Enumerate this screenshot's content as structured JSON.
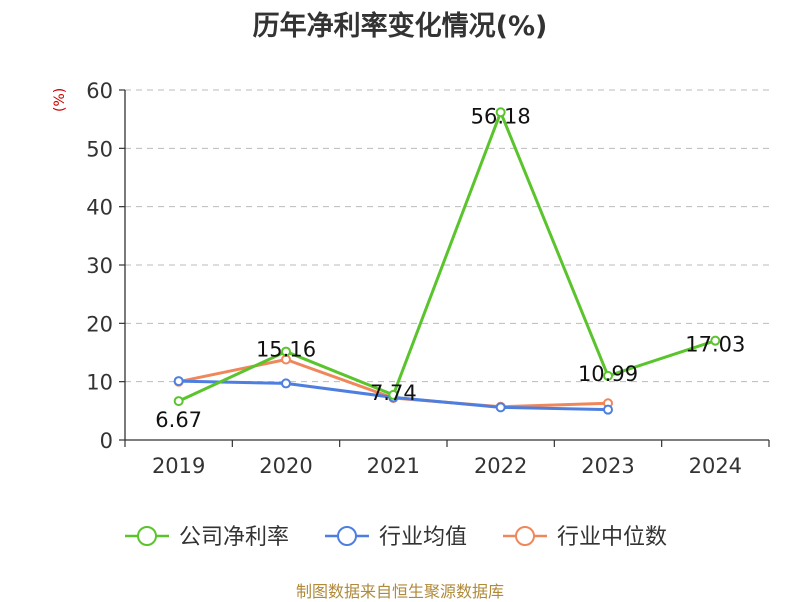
{
  "chart_data": {
    "type": "line",
    "title": "历年净利率变化情况(%)",
    "ylabel": "(%)",
    "xlabel": "",
    "categories": [
      "2019",
      "2020",
      "2021",
      "2022",
      "2023",
      "2024"
    ],
    "ylim": [
      0,
      60
    ],
    "yticks": [
      0,
      10,
      20,
      30,
      40,
      50,
      60
    ],
    "grid": true,
    "legend_position": "bottom",
    "series": [
      {
        "name": "公司净利率",
        "color": "#5ac42c",
        "values": [
          6.67,
          15.16,
          7.74,
          56.18,
          10.99,
          17.03
        ],
        "labels": [
          "6.67",
          "15.16",
          "7.74",
          "56.18",
          "10.99",
          "17.03"
        ]
      },
      {
        "name": "行业均值",
        "color": "#4e7fe0",
        "values": [
          10.1,
          9.7,
          7.3,
          5.6,
          5.2,
          null
        ]
      },
      {
        "name": "行业中位数",
        "color": "#f0875a",
        "values": [
          10.0,
          13.8,
          7.2,
          5.7,
          6.3,
          null
        ]
      }
    ]
  },
  "footer": {
    "source": "制图数据来自恒生聚源数据库"
  }
}
